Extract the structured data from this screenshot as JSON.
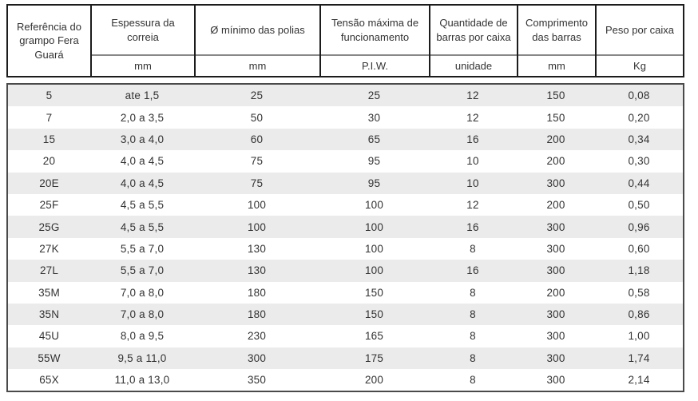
{
  "table": {
    "columns": [
      {
        "label": "Referência do grampo Fera Guará",
        "unit": ""
      },
      {
        "label": "Espessura da correia",
        "unit": "mm"
      },
      {
        "label": "Ø mínimo das polias",
        "unit": "mm"
      },
      {
        "label": "Tensão máxima de funcionamento",
        "unit": "P.I.W."
      },
      {
        "label": "Quantidade de barras por caixa",
        "unit": "unidade"
      },
      {
        "label": "Comprimento das barras",
        "unit": "mm"
      },
      {
        "label": "Peso por caixa",
        "unit": "Kg"
      }
    ],
    "rows": [
      [
        "5",
        "ate 1,5",
        "25",
        "25",
        "12",
        "150",
        "0,08"
      ],
      [
        "7",
        "2,0 a 3,5",
        "50",
        "30",
        "12",
        "150",
        "0,20"
      ],
      [
        "15",
        "3,0 a 4,0",
        "60",
        "65",
        "16",
        "200",
        "0,34"
      ],
      [
        "20",
        "4,0 a 4,5",
        "75",
        "95",
        "10",
        "200",
        "0,30"
      ],
      [
        "20E",
        "4,0 a 4,5",
        "75",
        "95",
        "10",
        "300",
        "0,44"
      ],
      [
        "25F",
        "4,5 a 5,5",
        "100",
        "100",
        "12",
        "200",
        "0,50"
      ],
      [
        "25G",
        "4,5 a 5,5",
        "100",
        "100",
        "16",
        "300",
        "0,96"
      ],
      [
        "27K",
        "5,5 a 7,0",
        "130",
        "100",
        "8",
        "300",
        "0,60"
      ],
      [
        "27L",
        "5,5 a 7,0",
        "130",
        "100",
        "16",
        "300",
        "1,18"
      ],
      [
        "35M",
        "7,0 a 8,0",
        "180",
        "150",
        "8",
        "200",
        "0,58"
      ],
      [
        "35N",
        "7,0 a 8,0",
        "180",
        "150",
        "8",
        "300",
        "0,86"
      ],
      [
        "45U",
        "8,0 a 9,5",
        "230",
        "165",
        "8",
        "300",
        "1,00"
      ],
      [
        "55W",
        "9,5 a 11,0",
        "300",
        "175",
        "8",
        "300",
        "1,74"
      ],
      [
        "65X",
        "11,0 a 13,0",
        "350",
        "200",
        "8",
        "300",
        "2,14"
      ]
    ]
  },
  "colors": {
    "stripe": "#ebebeb",
    "header_border": "#1c1c1c",
    "header_divider": "#888888",
    "body_border": "#4a4a4a",
    "text": "#333333"
  }
}
